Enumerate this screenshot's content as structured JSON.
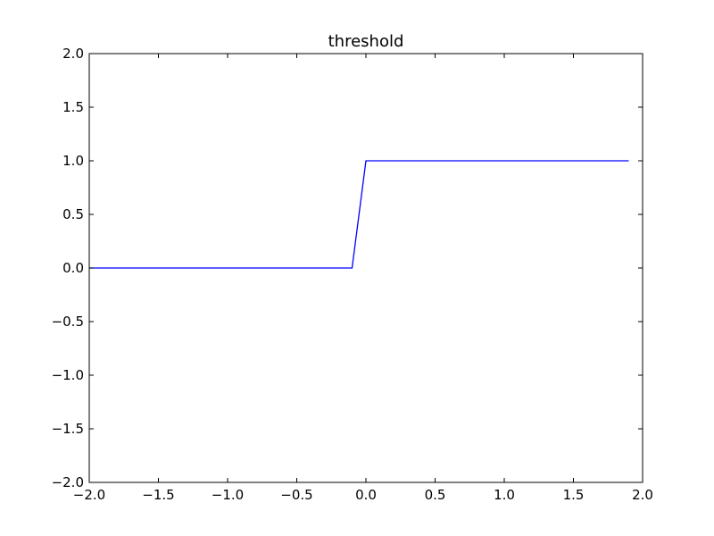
{
  "chart_data": {
    "type": "line",
    "title": "threshold",
    "xlabel": "",
    "ylabel": "",
    "xlim": [
      -2.0,
      2.0
    ],
    "ylim": [
      -2.0,
      2.0
    ],
    "xticks": [
      -2.0,
      -1.5,
      -1.0,
      -0.5,
      0.0,
      0.5,
      1.0,
      1.5,
      2.0
    ],
    "yticks": [
      -2.0,
      -1.5,
      -1.0,
      -0.5,
      0.0,
      0.5,
      1.0,
      1.5,
      2.0
    ],
    "xtick_labels": [
      "−2.0",
      "−1.5",
      "−1.0",
      "−0.5",
      "0.0",
      "0.5",
      "1.0",
      "1.5",
      "2.0"
    ],
    "ytick_labels": [
      "−2.0",
      "−1.5",
      "−1.0",
      "−0.5",
      "0.0",
      "0.5",
      "1.0",
      "1.5",
      "2.0"
    ],
    "grid": false,
    "series": [
      {
        "color": "#0000ff",
        "x": [
          -2.0,
          -0.1,
          0.0,
          1.9
        ],
        "y": [
          0.0,
          0.0,
          1.0,
          1.0
        ]
      }
    ]
  }
}
